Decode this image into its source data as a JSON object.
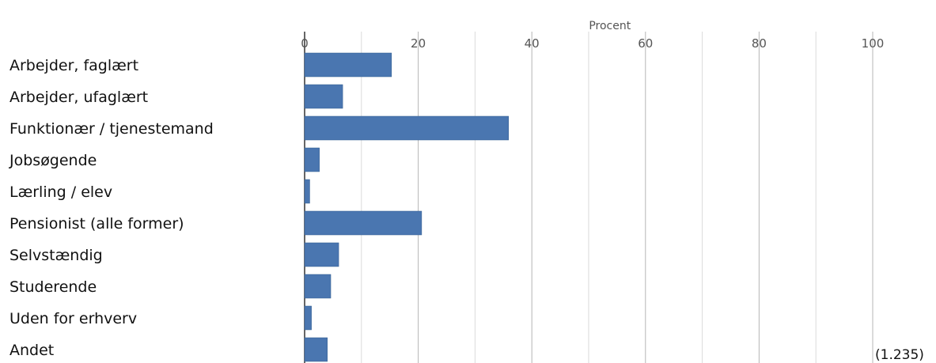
{
  "chart_data": {
    "type": "bar",
    "orientation": "horizontal",
    "xlabel": "Procent",
    "xlim": [
      0,
      100
    ],
    "ticks": [
      "0",
      "20",
      "40",
      "60",
      "80",
      "100"
    ],
    "grid": true,
    "bar_color": "#4a76b0",
    "categories": [
      "Arbejder, faglært",
      "Arbejder, ufaglært",
      "Funktionær / tjenestemand",
      "Jobsøgende",
      "Lærling / elev",
      "Pensionist (alle former)",
      "Selvstændig",
      "Studerende",
      "Uden for erhverv",
      "Andet"
    ],
    "values": [
      15.3,
      6.7,
      35.9,
      2.6,
      0.9,
      20.6,
      6.0,
      4.6,
      1.2,
      4.0
    ],
    "count_label": "(1.235)"
  }
}
